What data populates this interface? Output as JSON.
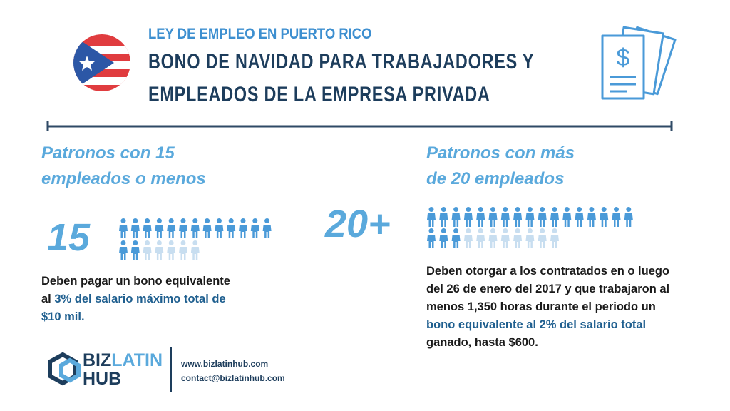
{
  "header": {
    "kicker": "LEY DE EMPLEO EN PUERTO RICO",
    "title_lines": [
      "BONO DE NAVIDAD PARA TRABAJADORES Y",
      "EMPLEADOS DE LA EMPRESA PRIVADA"
    ]
  },
  "left": {
    "heading_lines": [
      "Patronos con 15",
      "empleados o menos"
    ],
    "number": "15",
    "body": [
      "Deben pagar un bono equivalente al ",
      "3% del salario",
      " máximo total de $10 mil."
    ]
  },
  "right": {
    "heading_lines": [
      "Patronos con más",
      "de 20 empleados"
    ],
    "number": "20+",
    "body": [
      "Deben otorgar a los contratados en o luego del 26 de enero del 2017 y que trabajaron al menos 1,350 horas durante el periodo un ",
      "bono equivalente al 2% del salario total",
      " ganado, hasta $600."
    ]
  },
  "footer": {
    "logo": [
      "BIZ",
      "LATIN",
      "HUB"
    ],
    "website": "www.bizlatinhub.com",
    "email": "contact@bizlatinhub.com"
  }
}
